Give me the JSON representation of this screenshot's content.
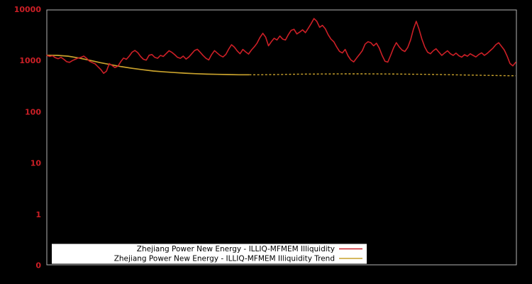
{
  "window": {
    "background": "#000000"
  },
  "chart": {
    "frame_color": "#b3b3b3",
    "yaxis": {
      "color": "#cc1f26",
      "ticks": [
        {
          "label": "10000",
          "value": 10000
        },
        {
          "label": "1000",
          "value": 1000
        },
        {
          "label": "100",
          "value": 100
        },
        {
          "label": "10",
          "value": 10
        },
        {
          "label": "1",
          "value": 1
        },
        {
          "label": "0",
          "value": null
        }
      ]
    },
    "legend": {
      "background": "#ffffff",
      "text_color": "#000000"
    }
  },
  "chart_data": {
    "type": "line",
    "title": "",
    "xlabel": "",
    "ylabel": "",
    "yscale": "log",
    "ylim": [
      0.107,
      10000
    ],
    "xaxis_tick_labels": "none",
    "grid": false,
    "legend_position": "bottom-center-inside",
    "series": [
      {
        "name": "Zhejiang Power New Energy - ILLIQ-MFMEM Illiquidity",
        "color": "#cc1f26",
        "style": "solid",
        "values": [
          1300,
          1240,
          1280,
          1170,
          1120,
          1190,
          1090,
          980,
          950,
          1030,
          1090,
          1150,
          1190,
          1260,
          1140,
          1000,
          940,
          890,
          780,
          690,
          580,
          640,
          900,
          820,
          750,
          800,
          980,
          1150,
          1090,
          1260,
          1500,
          1620,
          1470,
          1240,
          1090,
          1050,
          1310,
          1350,
          1190,
          1140,
          1300,
          1240,
          1410,
          1600,
          1490,
          1340,
          1190,
          1140,
          1260,
          1100,
          1210,
          1400,
          1620,
          1710,
          1490,
          1290,
          1140,
          1060,
          1350,
          1610,
          1440,
          1290,
          1210,
          1360,
          1720,
          2100,
          1880,
          1590,
          1400,
          1700,
          1520,
          1380,
          1650,
          1900,
          2250,
          2900,
          3500,
          2950,
          2000,
          2400,
          2800,
          2600,
          3100,
          2700,
          2600,
          3300,
          4000,
          4200,
          3400,
          3700,
          4100,
          3600,
          4400,
          5400,
          6800,
          6000,
          4600,
          5000,
          4300,
          3300,
          2700,
          2400,
          1900,
          1560,
          1450,
          1700,
          1280,
          1060,
          970,
          1150,
          1350,
          1600,
          2150,
          2400,
          2300,
          2000,
          2250,
          1800,
          1300,
          1000,
          960,
          1300,
          1800,
          2300,
          1900,
          1650,
          1550,
          1850,
          2600,
          4200,
          6000,
          4200,
          2700,
          1900,
          1500,
          1400,
          1600,
          1750,
          1500,
          1300,
          1450,
          1600,
          1400,
          1300,
          1440,
          1280,
          1200,
          1340,
          1250,
          1400,
          1300,
          1210,
          1350,
          1460,
          1300,
          1420,
          1600,
          1800,
          2100,
          2300,
          1950,
          1650,
          1250,
          900,
          810,
          950
        ]
      },
      {
        "name": "Zhejiang Power New Energy - ILLIQ-MFMEM Illiquidity Trend",
        "color": "#c9a22c",
        "style": "solid-then-dashed",
        "values": [
          1310,
          1300,
          1255,
          1155,
          1045,
          940,
          855,
          782,
          728,
          682,
          645,
          620,
          601,
          583,
          571,
          561,
          554,
          549,
          545,
          544,
          545,
          548,
          552,
          556,
          560,
          562,
          564,
          566,
          567,
          568,
          567,
          566,
          564,
          562,
          559,
          556,
          553,
          549,
          545,
          540,
          536,
          531,
          527,
          523,
          520
        ]
      }
    ]
  }
}
